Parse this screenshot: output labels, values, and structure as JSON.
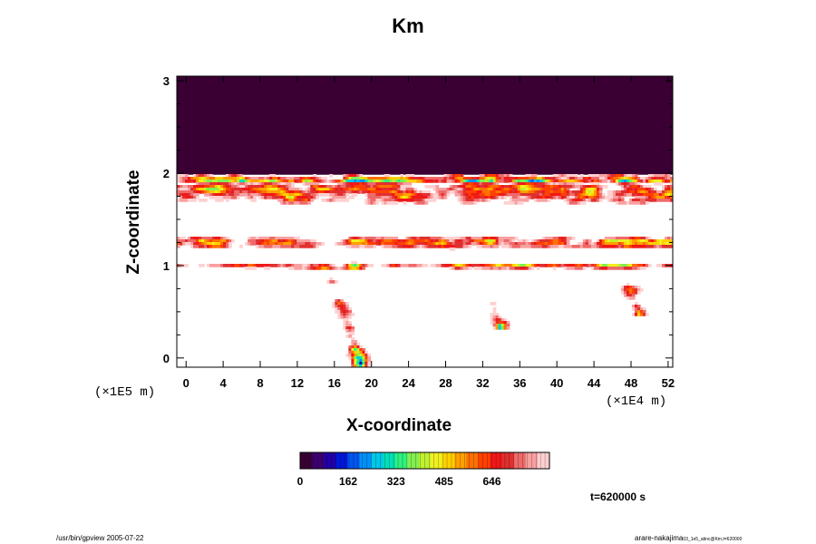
{
  "chart_data": {
    "type": "heatmap",
    "title": "Km",
    "xlabel": "X-coordinate",
    "ylabel": "Z-coordinate",
    "x_scale_note": "(×1E4 m)",
    "z_scale_note": "(×1E5 m)",
    "xlim": [
      -1,
      52.5
    ],
    "ylim": [
      -0.1,
      3.05
    ],
    "x_ticks": [
      "0",
      "4",
      "8",
      "12",
      "16",
      "20",
      "24",
      "28",
      "32",
      "36",
      "40",
      "44",
      "48",
      "52"
    ],
    "y_ticks": [
      "0",
      "1",
      "2",
      "3"
    ],
    "colorbar": {
      "ticks": [
        "0",
        "162",
        "323",
        "485",
        "646"
      ],
      "tick_values": [
        0,
        162,
        323,
        485,
        646
      ],
      "range": [
        0,
        840
      ],
      "colors": [
        "#3a0033",
        "#3c006e",
        "#2200a8",
        "#0018d8",
        "#0055f0",
        "#0090f8",
        "#00c8e8",
        "#00e0b8",
        "#30f080",
        "#80f050",
        "#c0f030",
        "#f0f020",
        "#ffd000",
        "#ffa000",
        "#ff7000",
        "#ff4000",
        "#f01818",
        "#e03030",
        "#ee6a6a",
        "#f8a0a0",
        "#ffd0d0"
      ]
    },
    "field": {
      "upper_layer_value": 30,
      "upper_layer_z_range": [
        1.98,
        3.05
      ],
      "features": [
        {
          "name": "turbulent band",
          "x_range": [
            -1,
            52.5
          ],
          "z_range": [
            1.6,
            2.0
          ]
        },
        {
          "name": "turbulent band",
          "x_range": [
            -1,
            52.5
          ],
          "z_range": [
            1.15,
            1.35
          ]
        },
        {
          "name": "turbulent band",
          "x_range": [
            -1,
            52.5
          ],
          "z_range": [
            0.95,
            1.05
          ]
        },
        {
          "name": "plume",
          "x_center": 19,
          "z_top": 1.0,
          "z_bottom": -0.1
        },
        {
          "name": "plume",
          "x_center": 34,
          "z_top": 0.75,
          "z_bottom": 0.3
        },
        {
          "name": "plume",
          "x_center": 49,
          "z_top": 0.95,
          "z_bottom": 0.45
        }
      ]
    }
  },
  "annotations": {
    "time": "t=620000 s",
    "footer_left": "/usr/bin/gpview 2005-07-22",
    "footer_right_main": "arare-nakajima",
    "footer_right_sub": "03_1e5_atinc@Km,t=620000"
  }
}
